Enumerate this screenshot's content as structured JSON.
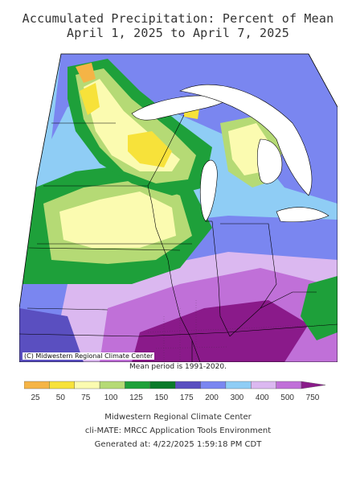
{
  "title_line1": "Accumulated Precipitation: Percent of Mean",
  "title_line2": "April 1, 2025 to April 7, 2025",
  "copyright": "(C) Midwestern Regional Climate Center",
  "mean_period": "Mean period is 1991-2020.",
  "legend": {
    "labels": [
      "25",
      "50",
      "75",
      "100",
      "125",
      "150",
      "175",
      "200",
      "300",
      "400",
      "500",
      "750"
    ],
    "colors": [
      "#f5b446",
      "#f7e23a",
      "#fbfbb0",
      "#b5da75",
      "#1ea03a",
      "#0a7a2a",
      "#5a4fc0",
      "#7a86f0",
      "#8fcdf5",
      "#dbb8f0",
      "#c070d8",
      "#8a1a8a"
    ]
  },
  "footer_line1": "Midwestern Regional Climate Center",
  "footer_line2": "cli-MATE: MRCC Application Tools Environment",
  "footer_line3": "Generated at: 4/22/2025 1:59:18 PM CDT"
}
